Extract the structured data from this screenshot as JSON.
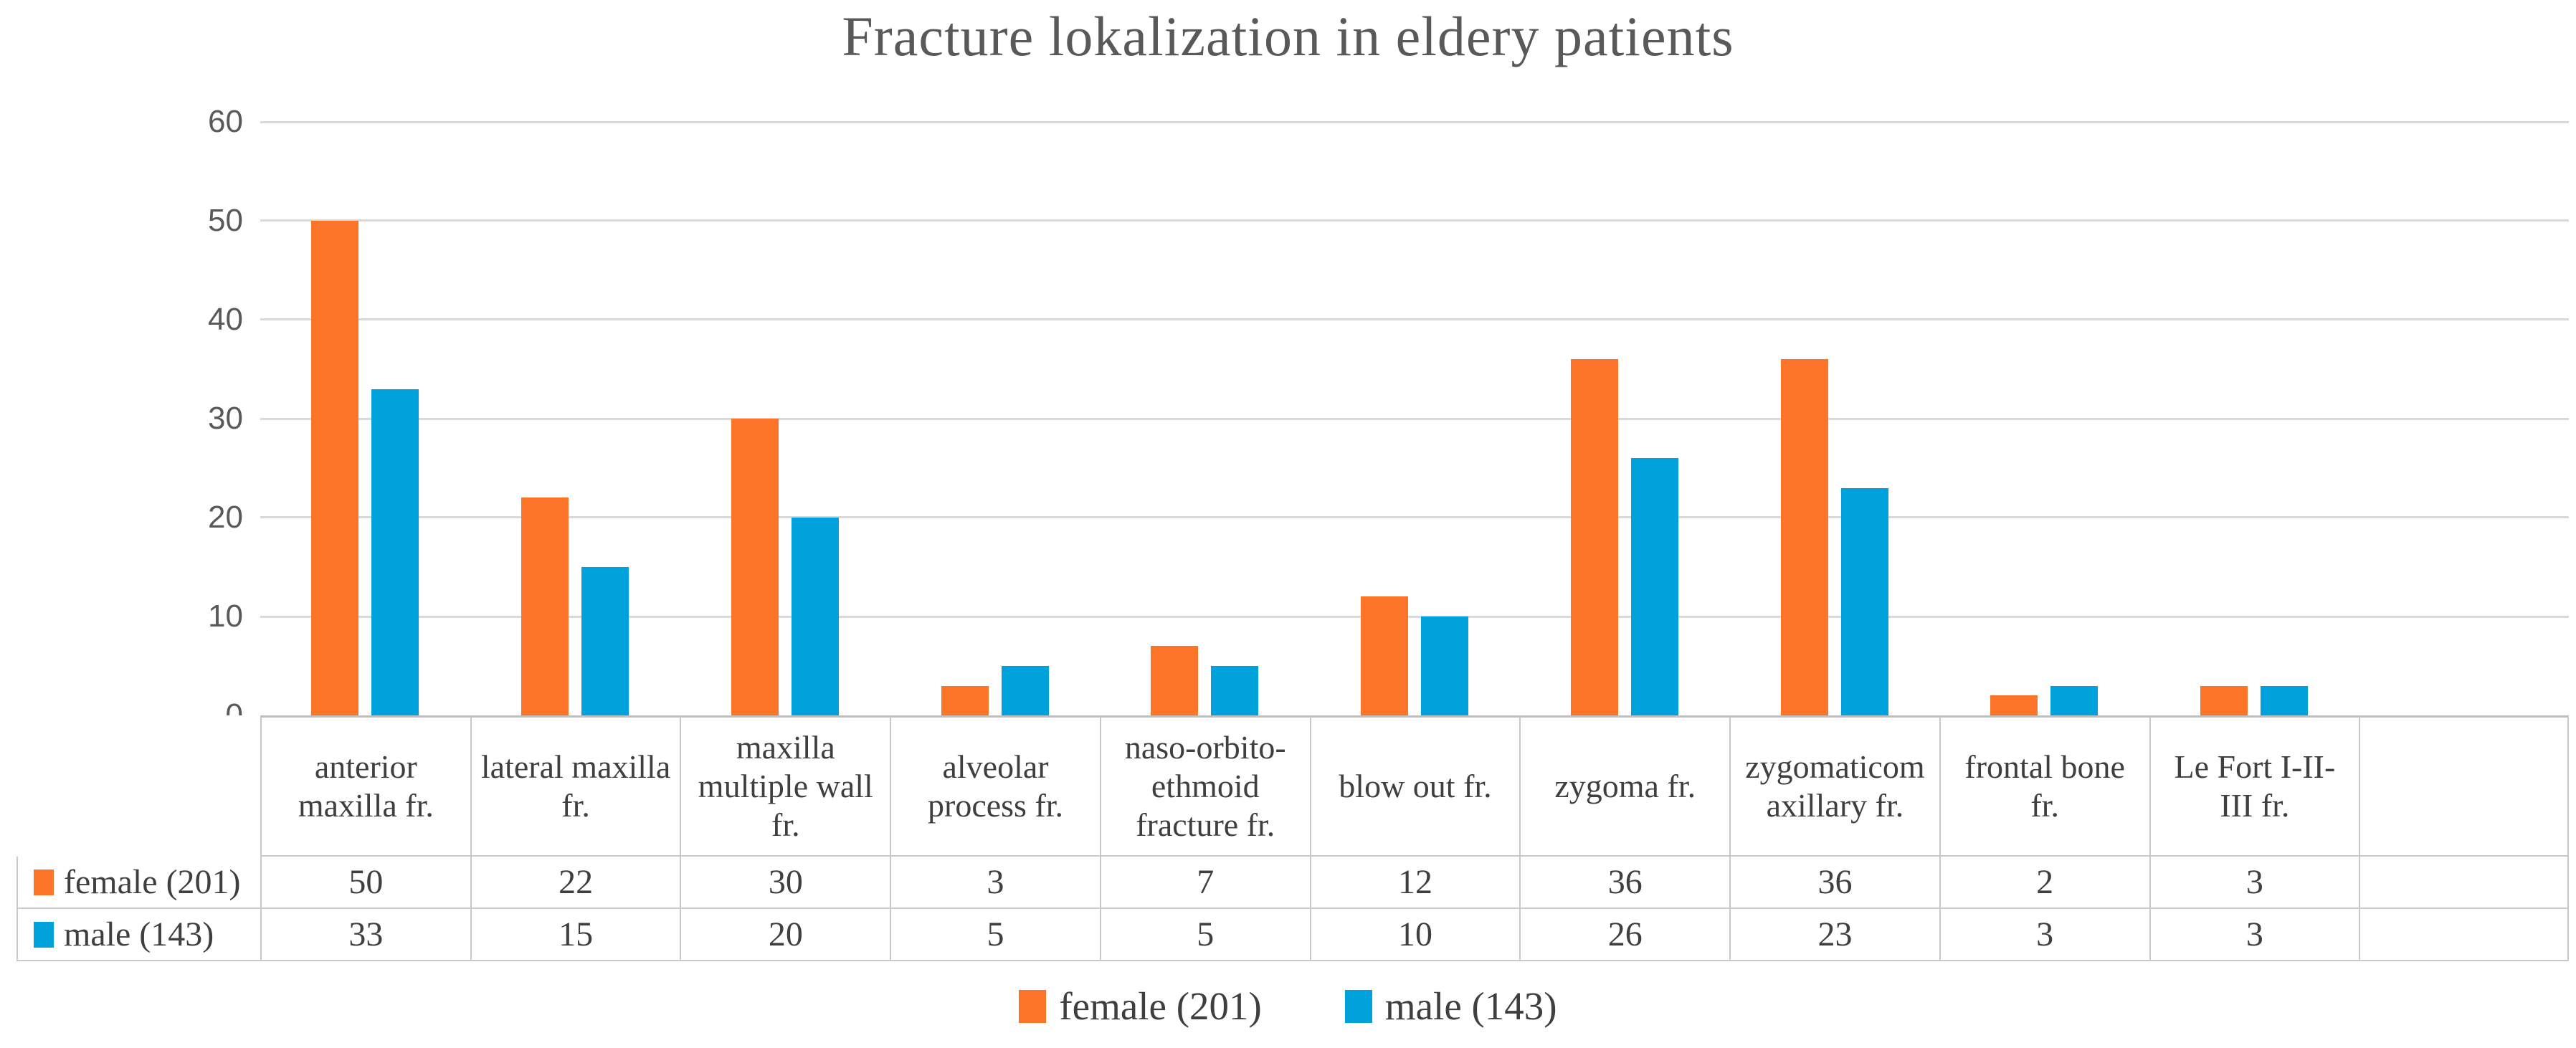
{
  "title": "Fracture lokalization in eldery patients",
  "colors": {
    "female": "#fc7428",
    "male": "#00a2dc",
    "gridline": "#d9d9d9",
    "axis_line": "#bfbfbf",
    "table_border": "#c9c9c9",
    "title_text": "#595959",
    "body_text": "#3f3f3f"
  },
  "y_axis": {
    "ticks": [
      0,
      10,
      20,
      30,
      40,
      50,
      60
    ],
    "max": 60
  },
  "chart_data": {
    "type": "bar",
    "title": "Fracture lokalization in eldery patients",
    "categories": [
      "anterior maxilla fr.",
      "lateral maxilla fr.",
      "maxilla multiple wall fr.",
      "alveolar process fr.",
      "naso-orbito-ethmoid fracture fr.",
      "blow out fr.",
      "zygoma fr.",
      "zygomaticomaxillary fr.",
      "frontal bone fr.",
      "Le Fort I-II-III fr."
    ],
    "categories_display": [
      "anterior\nmaxilla fr.",
      "lateral maxilla\nfr.",
      "maxilla\nmultiple wall\nfr.",
      "alveolar\nprocess fr.",
      "naso-orbito-\nethmoid\nfracture fr.",
      "blow out fr.",
      "zygoma fr.",
      "zygomaticom\naxillary fr.",
      "frontal bone\nfr.",
      "Le Fort I-II-\nIII fr."
    ],
    "series": [
      {
        "name": "female (201)",
        "color": "#fc7428",
        "values": [
          50,
          22,
          30,
          3,
          7,
          12,
          36,
          36,
          2,
          3
        ]
      },
      {
        "name": "male (143)",
        "color": "#00a2dc",
        "values": [
          33,
          15,
          20,
          5,
          5,
          10,
          26,
          23,
          3,
          3
        ]
      }
    ],
    "xlabel": "",
    "ylabel": "",
    "ylim": [
      0,
      60
    ],
    "grid": true,
    "legend_position": "bottom",
    "data_table_shown": true,
    "trailing_empty_column": true
  },
  "legend": {
    "items": [
      {
        "label": "female (201)",
        "color": "#fc7428"
      },
      {
        "label": "male (143)",
        "color": "#00a2dc"
      }
    ]
  }
}
